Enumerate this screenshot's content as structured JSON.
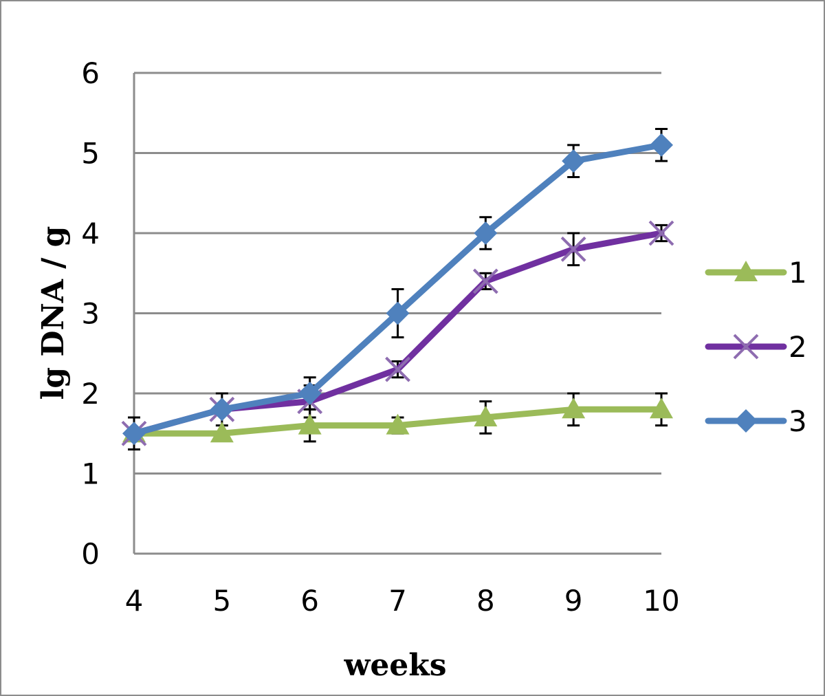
{
  "chart_data": {
    "type": "line",
    "title": "",
    "xlabel": "weeks",
    "ylabel": "lg DNA / g",
    "x": [
      4,
      5,
      6,
      7,
      8,
      9,
      10
    ],
    "xlim": [
      4,
      10
    ],
    "ylim": [
      0,
      6
    ],
    "yticks": [
      0,
      1,
      2,
      3,
      4,
      5,
      6
    ],
    "grid": "horizontal",
    "legend_position": "right",
    "series": [
      {
        "name": "1",
        "color": "#9BBB59",
        "marker": "triangle",
        "values": [
          1.5,
          1.5,
          1.6,
          1.6,
          1.7,
          1.8,
          1.8
        ],
        "errors": [
          0.0,
          0.0,
          0.2,
          0.1,
          0.2,
          0.2,
          0.2
        ]
      },
      {
        "name": "2",
        "color": "#7030A0",
        "marker": "x",
        "values": [
          1.5,
          1.8,
          1.9,
          2.3,
          3.4,
          3.8,
          4.0
        ],
        "errors": [
          0.0,
          0.2,
          0.2,
          0.1,
          0.1,
          0.2,
          0.1
        ]
      },
      {
        "name": "3",
        "color": "#4F81BD",
        "marker": "diamond",
        "values": [
          1.5,
          1.8,
          2.0,
          3.0,
          4.0,
          4.9,
          5.1
        ],
        "errors": [
          0.2,
          0.0,
          0.2,
          0.3,
          0.2,
          0.2,
          0.2
        ]
      }
    ]
  }
}
